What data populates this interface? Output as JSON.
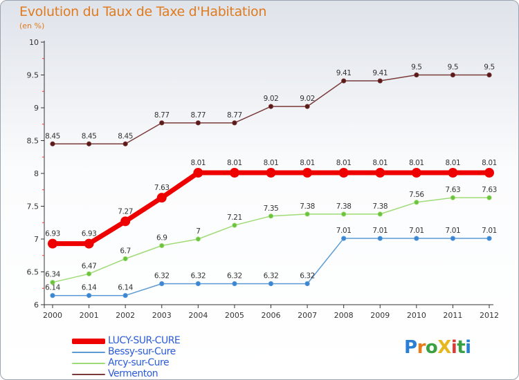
{
  "title": "Evolution du Taux de Taxe d'Habitation",
  "subtitle": "(en %)",
  "logo": {
    "text": "ProXiti",
    "letters": [
      "P",
      "r",
      "o",
      "X",
      "i",
      "t",
      "i"
    ],
    "colors": [
      "#2a7fd4",
      "#e87b1c",
      "#3aa142",
      "#e6b820",
      "#d93a3a",
      "#3aa142",
      "#2a7fd4"
    ]
  },
  "chart_data": {
    "type": "line",
    "title": "Evolution du Taux de Taxe d'Habitation",
    "ylabel": "(en %)",
    "xlabel": "",
    "ylim": [
      6,
      10
    ],
    "yticks": [
      6,
      6.5,
      7,
      7.5,
      8,
      8.5,
      9,
      9.5,
      10
    ],
    "ytick_labels": [
      "6",
      "6.5",
      "7",
      "7.5",
      "8",
      "8.5",
      "9",
      "9.5",
      "10"
    ],
    "x": [
      "2000",
      "2001",
      "2002",
      "2003",
      "2004",
      "2005",
      "2006",
      "2007",
      "2008",
      "2009",
      "2010",
      "2011",
      "2012"
    ],
    "series": [
      {
        "name": "LUCY-SUR-CURE",
        "color": "#ee0000",
        "emphasis": true,
        "values": [
          6.93,
          6.93,
          7.27,
          7.63,
          8.01,
          8.01,
          8.01,
          8.01,
          8.01,
          8.01,
          8.01,
          8.01,
          8.01
        ],
        "labels": [
          "6.93",
          "6.93",
          "7.27",
          "7.63",
          "8.01",
          "8.01",
          "8.01",
          "8.01",
          "8.01",
          "8.01",
          "8.01",
          "8.01",
          "8.01"
        ]
      },
      {
        "name": "Bessy-sur-Cure",
        "color": "#5b9bd5",
        "marker": "#3a86d4",
        "values": [
          6.14,
          6.14,
          6.14,
          6.32,
          6.32,
          6.32,
          6.32,
          6.32,
          7.01,
          7.01,
          7.01,
          7.01,
          7.01
        ],
        "labels": [
          "6.14",
          "6.14",
          "6.14",
          "6.32",
          "6.32",
          "6.32",
          "6.32",
          "6.32",
          "7.01",
          "7.01",
          "7.01",
          "7.01",
          "7.01"
        ]
      },
      {
        "name": "Arcy-sur-Cure",
        "color": "#9edb76",
        "marker": "#6ac33c",
        "values": [
          6.34,
          6.47,
          6.7,
          6.9,
          7,
          7.21,
          7.35,
          7.38,
          7.38,
          7.38,
          7.56,
          7.63,
          7.63
        ],
        "labels": [
          "6.34",
          "6.47",
          "6.7",
          "6.9",
          "7",
          "7.21",
          "7.35",
          "7.38",
          "7.38",
          "7.38",
          "7.56",
          "7.63",
          "7.63"
        ]
      },
      {
        "name": "Vermenton",
        "color": "#7a3a3a",
        "marker": "#5a1a1a",
        "values": [
          8.45,
          8.45,
          8.45,
          8.77,
          8.77,
          8.77,
          9.02,
          9.02,
          9.41,
          9.41,
          9.5,
          9.5,
          9.5
        ],
        "labels": [
          "8.45",
          "8.45",
          "8.45",
          "8.77",
          "8.77",
          "8.77",
          "9.02",
          "9.02",
          "9.41",
          "9.41",
          "9.5",
          "9.5",
          "9.5"
        ]
      }
    ],
    "legend": "bottom-left",
    "grid": false
  }
}
